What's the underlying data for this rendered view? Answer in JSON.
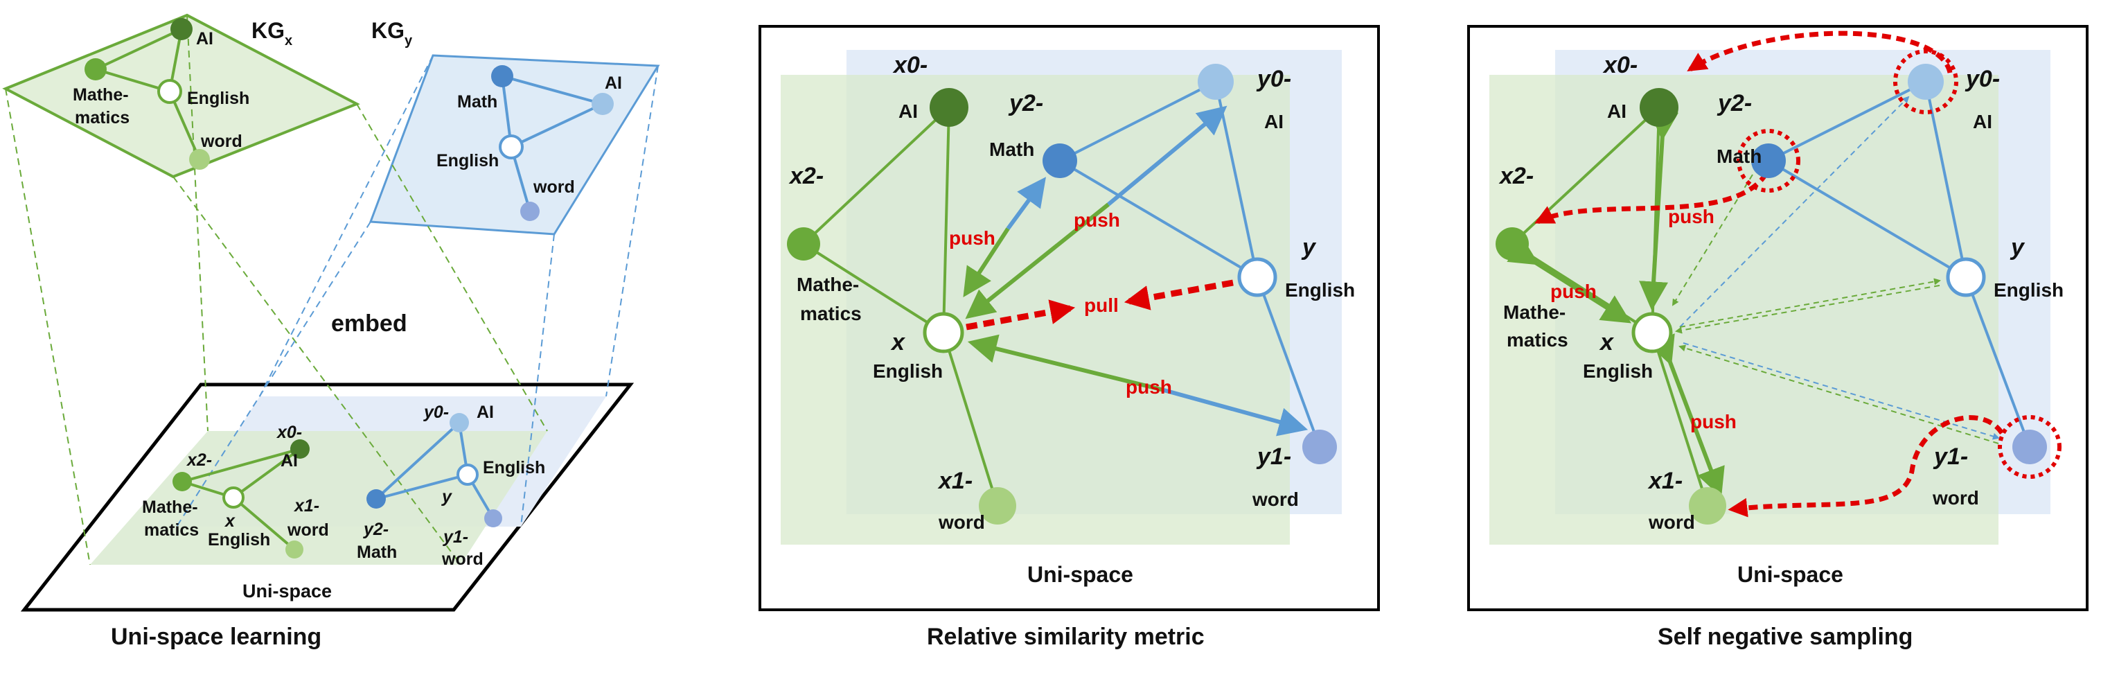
{
  "colors": {
    "green": "#6aaa3a",
    "green_dark": "#4a7d2c",
    "green_light": "#a8d080",
    "blue": "#5b9bd5",
    "blue_mid": "#4a86c8",
    "blue_light": "#9dc3e6",
    "blue_pale": "#8fa8dc",
    "red": "#e00000",
    "green_plane": "#e2efd9",
    "blue_plane": "#deebf7"
  },
  "panel1": {
    "kgx_label": "KG",
    "kgx_sub": "x",
    "kgy_label": "KG",
    "kgy_sub": "y",
    "embed_label": "embed",
    "unispace_label": "Uni-space",
    "caption": "Uni-space learning",
    "kgx_nodes": {
      "ai": "AI",
      "english": "English",
      "math_1": "Mathe-",
      "math_2": "matics",
      "word": "word"
    },
    "kgy_nodes": {
      "math": "Math",
      "ai": "AI",
      "english": "English",
      "word": "word"
    },
    "uni_labels": {
      "x0": "x0-",
      "x2": "x2-",
      "x": "x",
      "x1": "x1-",
      "y0": "y0-",
      "y2": "y2-",
      "y": "y",
      "y1": "y1-",
      "ai_x": "AI",
      "english_x": "English",
      "math_x_1": "Mathe-",
      "math_x_2": "matics",
      "word_x": "word",
      "ai_y": "AI",
      "english_y": "English",
      "math_y": "Math",
      "word_y": "word"
    }
  },
  "panel2": {
    "caption": "Relative similarity metric",
    "unispace_label": "Uni-space",
    "labels": {
      "x0": "x0-",
      "x2": "x2-",
      "x": "x",
      "x1": "x1-",
      "y0": "y0-",
      "y2": "y2-",
      "y": "y",
      "y1": "y1-",
      "ai_x": "AI",
      "math_x_1": "Mathe-",
      "math_x_2": "matics",
      "english_x": "English",
      "word_x": "word",
      "math_y": "Math",
      "ai_y": "AI",
      "english_y": "English",
      "word_y": "word"
    },
    "push": "push",
    "pull": "pull"
  },
  "panel3": {
    "caption": "Self negative sampling",
    "unispace_label": "Uni-space",
    "labels": {
      "x0": "x0-",
      "x2": "x2-",
      "x": "x",
      "x1": "x1-",
      "y0": "y0-",
      "y2": "y2-",
      "y": "y",
      "y1": "y1-",
      "ai_x": "AI",
      "math_x_1": "Mathe-",
      "math_x_2": "matics",
      "english_x": "English",
      "word_x": "word",
      "math_y": "Math",
      "ai_y": "AI",
      "english_y": "English",
      "word_y": "word"
    },
    "push": "push"
  }
}
